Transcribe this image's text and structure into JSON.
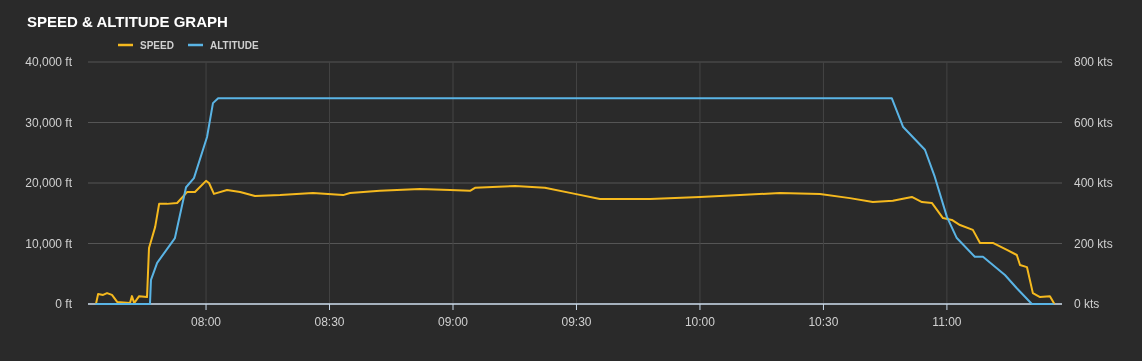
{
  "chart_data": {
    "type": "line",
    "title": "SPEED & ALTITUDE GRAPH",
    "legend": "top left",
    "grid": true,
    "xlim": [
      7.522,
      11.466
    ],
    "xticks": [
      {
        "value": 8,
        "label": "08:00"
      },
      {
        "value": 8.5,
        "label": "08:30"
      },
      {
        "value": 9,
        "label": "09:00"
      },
      {
        "value": 9.5,
        "label": "09:30"
      },
      {
        "value": 10,
        "label": "10:00"
      },
      {
        "value": 10.5,
        "label": "10:30"
      },
      {
        "value": 11,
        "label": "11:00"
      }
    ],
    "ylim": [
      0,
      40000
    ],
    "yticks": [
      {
        "value": 0,
        "label": "0 ft"
      },
      {
        "value": 10000,
        "label": "10,000 ft"
      },
      {
        "value": 20000,
        "label": "20,000 ft"
      },
      {
        "value": 30000,
        "label": "30,000 ft"
      },
      {
        "value": 40000,
        "label": "40,000 ft"
      }
    ],
    "y2lim": [
      0,
      800
    ],
    "y2ticks": [
      {
        "value": 0,
        "label": "0 kts"
      },
      {
        "value": 200,
        "label": "200 kts"
      },
      {
        "value": 400,
        "label": "400 kts"
      },
      {
        "value": 600,
        "label": "600 kts"
      },
      {
        "value": 800,
        "label": "800 kts"
      }
    ],
    "series": [
      {
        "name": "SPEED",
        "color": "#f5b91e",
        "axis": "y2",
        "x": [
          7.555,
          7.563,
          7.583,
          7.599,
          7.619,
          7.64,
          7.692,
          7.7,
          7.709,
          7.729,
          7.761,
          7.769,
          7.781,
          7.794,
          7.81,
          7.842,
          7.883,
          7.923,
          7.955,
          8.0,
          8.012,
          8.032,
          8.085,
          8.138,
          8.198,
          8.3,
          8.433,
          8.555,
          8.583,
          8.704,
          8.866,
          8.988,
          9.069,
          9.089,
          9.251,
          9.372,
          9.494,
          9.595,
          9.798,
          10.0,
          10.162,
          10.324,
          10.486,
          10.607,
          10.7,
          10.781,
          10.858,
          10.899,
          10.939,
          10.984,
          11.02,
          11.053,
          11.105,
          11.134,
          11.186,
          11.243,
          11.283,
          11.296,
          11.324,
          11.348,
          11.377,
          11.417,
          11.433
        ],
        "values": [
          3,
          33,
          30,
          36,
          30,
          7,
          3,
          26,
          3,
          26,
          23,
          185,
          218,
          255,
          331,
          331,
          334,
          370,
          370,
          407,
          400,
          364,
          377,
          370,
          357,
          360,
          367,
          360,
          367,
          374,
          380,
          377,
          374,
          384,
          390,
          384,
          364,
          347,
          347,
          354,
          360,
          367,
          364,
          350,
          337,
          341,
          354,
          337,
          334,
          284,
          278,
          261,
          245,
          202,
          202,
          179,
          162,
          129,
          122,
          36,
          23,
          26,
          3
        ]
      },
      {
        "name": "ALTITUDE",
        "color": "#5ab4e5",
        "x": [
          7.555,
          7.773,
          7.777,
          7.802,
          7.874,
          7.919,
          7.951,
          8.004,
          8.028,
          8.049,
          10.777,
          10.822,
          10.911,
          10.951,
          11.0,
          11.04,
          11.113,
          11.146,
          11.235,
          11.283,
          11.344,
          11.429
        ],
        "values": [
          0,
          0,
          4000,
          6800,
          10900,
          19300,
          20800,
          27600,
          33200,
          34000,
          34000,
          29300,
          25500,
          21000,
          14400,
          10900,
          7800,
          7800,
          4800,
          2600,
          0,
          0
        ]
      }
    ]
  }
}
